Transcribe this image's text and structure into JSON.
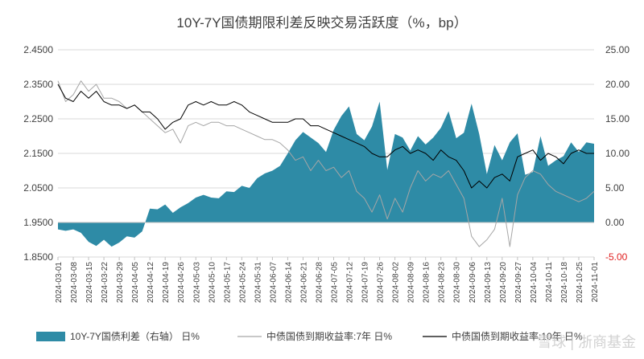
{
  "chart_data": {
    "type": "area+line",
    "title": "10Y-7Y国债期限利差反映交易活跃度（%，bp）",
    "left_axis": {
      "ticks": [
        "2.4500",
        "2.3500",
        "2.2500",
        "2.1500",
        "2.0500",
        "1.9500",
        "1.8500"
      ],
      "ylim": [
        1.85,
        2.45
      ]
    },
    "right_axis": {
      "ticks": [
        "25.00",
        "20.00",
        "15.00",
        "10.00",
        "5.00",
        "0.00",
        "-5.00"
      ],
      "ylim": [
        -5,
        25
      ]
    },
    "x_ticks": [
      "2024-03-01",
      "2024-03-08",
      "2024-03-15",
      "2024-03-22",
      "2024-03-29",
      "2024-04-05",
      "2024-04-12",
      "2024-04-19",
      "2024-04-26",
      "2024-05-03",
      "2024-05-10",
      "2024-05-17",
      "2024-05-24",
      "2024-05-31",
      "2024-06-07",
      "2024-06-14",
      "2024-06-21",
      "2024-06-28",
      "2024-07-05",
      "2024-07-12",
      "2024-07-19",
      "2024-07-26",
      "2024-08-02",
      "2024-08-09",
      "2024-08-16",
      "2024-08-23",
      "2024-08-30",
      "2024-09-06",
      "2024-09-13",
      "2024-09-20",
      "2024-09-27",
      "2024-10-04",
      "2024-10-11",
      "2024-10-18",
      "2024-10-25",
      "2024-11-01"
    ],
    "series": [
      {
        "name": "10Y-7Y国债利差（右轴） 日%",
        "kind": "area",
        "axis": "right",
        "color": "#2e8ba6",
        "x": [
          0,
          0.5,
          1,
          1.5,
          2,
          2.5,
          3,
          3.5,
          4,
          4.5,
          5,
          5.5,
          6,
          6.5,
          7,
          7.5,
          8,
          8.5,
          9,
          9.5,
          10,
          10.5,
          11,
          11.5,
          12,
          12.5,
          13,
          13.5,
          14,
          14.5,
          15,
          15.5,
          16,
          16.5,
          17,
          17.5,
          18,
          18.5,
          19,
          19.5,
          20,
          20.5,
          21,
          21.5,
          22,
          22.5,
          23,
          23.5,
          24,
          24.5,
          25,
          25.5,
          26,
          26.5,
          27,
          27.5,
          28,
          28.5,
          29,
          29.5,
          30,
          30.5,
          31,
          31.5,
          32,
          32.5,
          33,
          33.5,
          34,
          34.5,
          35
        ],
        "values": [
          -1.0,
          -1.2,
          -1.0,
          -1.5,
          -2.8,
          -3.4,
          -2.5,
          -3.5,
          -2.9,
          -2.0,
          -2.2,
          -1.3,
          2.0,
          1.9,
          2.6,
          1.4,
          2.2,
          2.8,
          3.6,
          4.0,
          3.6,
          3.5,
          4.5,
          4.4,
          5.3,
          5.0,
          6.4,
          7.1,
          7.5,
          8.2,
          10.0,
          11.9,
          13.1,
          12.3,
          11.5,
          10.2,
          13.4,
          15.4,
          16.8,
          12.8,
          11.9,
          13.9,
          17.5,
          7.6,
          12.8,
          12.3,
          10.4,
          12.5,
          11.3,
          12.3,
          13.7,
          16.1,
          12.2,
          13.0,
          17.2,
          12.8,
          7.0,
          11.2,
          9.0,
          11.6,
          12.9,
          6.9,
          7.3,
          12.5,
          8.2,
          9.0,
          9.6,
          11.6,
          10.2,
          11.6,
          11.4
        ]
      },
      {
        "name": "中债国债到期收益率:7年 日%",
        "kind": "line",
        "axis": "left",
        "color": "#a6a6a6",
        "x": [
          0,
          0.5,
          1,
          1.5,
          2,
          2.5,
          3,
          3.5,
          4,
          4.5,
          5,
          5.5,
          6,
          6.5,
          7,
          7.5,
          8,
          8.5,
          9,
          9.5,
          10,
          10.5,
          11,
          11.5,
          12,
          12.5,
          13,
          13.5,
          14,
          14.5,
          15,
          15.5,
          16,
          16.5,
          17,
          17.5,
          18,
          18.5,
          19,
          19.5,
          20,
          20.5,
          21,
          21.5,
          22,
          22.5,
          23,
          23.5,
          24,
          24.5,
          25,
          25.5,
          26,
          26.5,
          27,
          27.5,
          28,
          28.5,
          29,
          29.5,
          30,
          30.5,
          31,
          31.5,
          32,
          32.5,
          33,
          33.5,
          34,
          34.5,
          35
        ],
        "values": [
          2.36,
          2.3,
          2.32,
          2.36,
          2.33,
          2.35,
          2.31,
          2.31,
          2.3,
          2.28,
          2.29,
          2.27,
          2.25,
          2.23,
          2.21,
          2.22,
          2.18,
          2.23,
          2.24,
          2.23,
          2.24,
          2.24,
          2.23,
          2.23,
          2.22,
          2.21,
          2.2,
          2.19,
          2.19,
          2.18,
          2.16,
          2.13,
          2.14,
          2.1,
          2.13,
          2.1,
          2.11,
          2.08,
          2.1,
          2.04,
          2.02,
          1.98,
          2.03,
          1.96,
          2.02,
          1.98,
          2.05,
          2.1,
          2.07,
          2.09,
          2.08,
          2.1,
          2.06,
          2.02,
          1.91,
          1.88,
          1.9,
          1.93,
          2.02,
          1.88,
          2.03,
          2.08,
          2.1,
          2.09,
          2.06,
          2.04,
          2.03,
          2.02,
          2.01,
          2.02,
          2.04
        ]
      },
      {
        "name": "中债国债到期收益率:10年 日%",
        "kind": "line",
        "axis": "left",
        "color": "#000000",
        "x": [
          0,
          0.5,
          1,
          1.5,
          2,
          2.5,
          3,
          3.5,
          4,
          4.5,
          5,
          5.5,
          6,
          6.5,
          7,
          7.5,
          8,
          8.5,
          9,
          9.5,
          10,
          10.5,
          11,
          11.5,
          12,
          12.5,
          13,
          13.5,
          14,
          14.5,
          15,
          15.5,
          16,
          16.5,
          17,
          17.5,
          18,
          18.5,
          19,
          19.5,
          20,
          20.5,
          21,
          21.5,
          22,
          22.5,
          23,
          23.5,
          24,
          24.5,
          25,
          25.5,
          26,
          26.5,
          27,
          27.5,
          28,
          28.5,
          29,
          29.5,
          30,
          30.5,
          31,
          31.5,
          32,
          32.5,
          33,
          33.5,
          34,
          34.5,
          35
        ],
        "values": [
          2.35,
          2.31,
          2.3,
          2.33,
          2.31,
          2.33,
          2.3,
          2.29,
          2.29,
          2.28,
          2.29,
          2.27,
          2.27,
          2.25,
          2.22,
          2.24,
          2.25,
          2.29,
          2.3,
          2.29,
          2.3,
          2.29,
          2.29,
          2.3,
          2.29,
          2.27,
          2.26,
          2.25,
          2.24,
          2.24,
          2.24,
          2.25,
          2.25,
          2.23,
          2.23,
          2.22,
          2.21,
          2.2,
          2.19,
          2.18,
          2.17,
          2.15,
          2.14,
          2.14,
          2.16,
          2.17,
          2.15,
          2.16,
          2.15,
          2.13,
          2.16,
          2.14,
          2.13,
          2.1,
          2.05,
          2.07,
          2.05,
          2.08,
          2.09,
          2.07,
          2.14,
          2.15,
          2.16,
          2.13,
          2.15,
          2.14,
          2.12,
          2.15,
          2.16,
          2.15,
          2.15
        ]
      }
    ],
    "legend": [
      {
        "label": "10Y-7Y国债利差（右轴） 日%",
        "color": "#2e8ba6",
        "kind": "area"
      },
      {
        "label": "中债国债到期收益率:7年 日%",
        "color": "#a6a6a6",
        "kind": "line"
      },
      {
        "label": "中债国债到期收益率:10年 日%",
        "color": "#000000",
        "kind": "line"
      }
    ],
    "watermark": "雪球 | 浙商基金",
    "negative_tick_color": "#e02020"
  }
}
